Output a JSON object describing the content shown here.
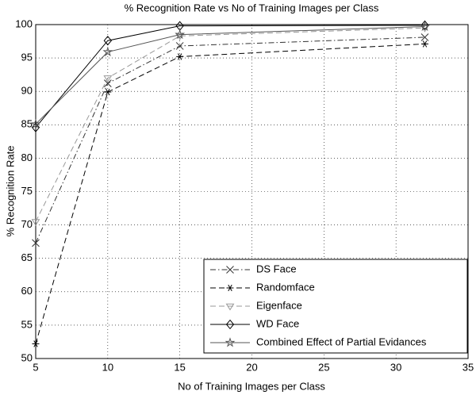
{
  "chart_data": {
    "type": "line",
    "title": "% Recognition Rate vs No of Training Images per Class",
    "x_label": "No of Training Images per Class",
    "y_label": "% Recognition Rate",
    "x": [
      5,
      10,
      15,
      32
    ],
    "series": [
      {
        "name": "DS Face",
        "color": "#333333",
        "dash": "dashdot",
        "marker": "x",
        "values": [
          67.3,
          91.2,
          96.8,
          98.1
        ]
      },
      {
        "name": "Randomface",
        "color": "#000000",
        "dash": "dashed",
        "marker": "star6",
        "values": [
          52.2,
          89.9,
          95.2,
          97.1
        ]
      },
      {
        "name": "Eigenface",
        "color": "#999999",
        "dash": "dashed",
        "marker": "triangle-down",
        "values": [
          70.5,
          92.0,
          98.3,
          99.5
        ]
      },
      {
        "name": "WD Face",
        "color": "#000000",
        "dash": "solid",
        "marker": "diamond",
        "values": [
          84.6,
          97.6,
          99.8,
          99.9
        ]
      },
      {
        "name": "Combined Effect of Partial Evidances",
        "color": "#555555",
        "dash": "solid",
        "marker": "pentagram",
        "values": [
          85.1,
          95.9,
          98.5,
          99.7
        ]
      }
    ],
    "xlim": [
      5,
      35
    ],
    "xticks": [
      5,
      10,
      15,
      20,
      25,
      30,
      35
    ],
    "ylim": [
      50,
      100
    ],
    "yticks": [
      50,
      55,
      60,
      65,
      70,
      75,
      80,
      85,
      90,
      95,
      100
    ],
    "grid": true,
    "legend": "lower right"
  }
}
